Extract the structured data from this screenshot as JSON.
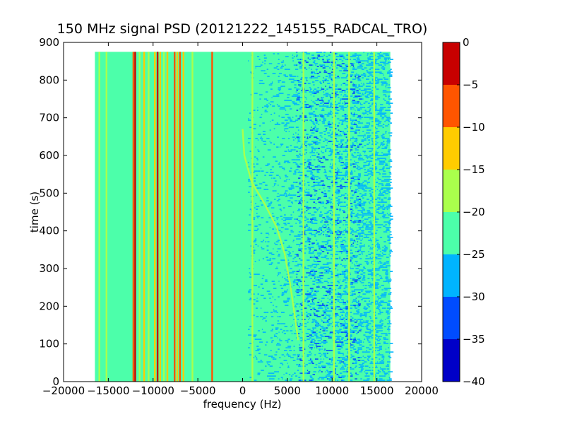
{
  "chart_data": {
    "type": "heatmap",
    "title": "150 MHz signal PSD (20121222_145155_RADCAL_TRO)",
    "xlabel": "frequency (Hz)",
    "ylabel": "time (s)",
    "xlim": [
      -20000,
      20000
    ],
    "ylim": [
      0,
      900
    ],
    "x_ticks": [
      "−20000",
      "−15000",
      "−10000",
      "−5000",
      "0",
      "5000",
      "10000",
      "15000",
      "20000"
    ],
    "y_ticks": [
      "0",
      "100",
      "200",
      "300",
      "400",
      "500",
      "600",
      "700",
      "800",
      "900"
    ],
    "data_extent": {
      "x": [
        -16500,
        16500
      ],
      "y": [
        0,
        875
      ]
    },
    "background_level": -22.5,
    "colorbar": {
      "range": [
        -40,
        0
      ],
      "ticks": [
        "0",
        "−5",
        "−10",
        "−15",
        "−20",
        "−25",
        "−30",
        "−35",
        "−40"
      ],
      "levels": [
        {
          "from": -40,
          "to": -35,
          "color": "#0000c8"
        },
        {
          "from": -35,
          "to": -30,
          "color": "#004cff"
        },
        {
          "from": -30,
          "to": -25,
          "color": "#00b4ff"
        },
        {
          "from": -25,
          "to": -20,
          "color": "#4cffaa"
        },
        {
          "from": -20,
          "to": -15,
          "color": "#aaff4c"
        },
        {
          "from": -15,
          "to": -10,
          "color": "#ffcc00"
        },
        {
          "from": -10,
          "to": -5,
          "color": "#ff5500"
        },
        {
          "from": -5,
          "to": 0,
          "color": "#c80000"
        }
      ]
    },
    "signal_lines": [
      {
        "x": -16000,
        "level": -17.5
      },
      {
        "x": -15200,
        "level": -17.5
      },
      {
        "x": -12200,
        "level": -7.5
      },
      {
        "x": -12000,
        "level": -2.5
      },
      {
        "x": -11500,
        "level": -17.5
      },
      {
        "x": -11000,
        "level": -12.5
      },
      {
        "x": -10500,
        "level": -17.5
      },
      {
        "x": -9800,
        "level": -12.5
      },
      {
        "x": -9500,
        "level": -2.5
      },
      {
        "x": -9200,
        "level": -12.5
      },
      {
        "x": -8800,
        "level": -17.5
      },
      {
        "x": -8400,
        "level": -12.5
      },
      {
        "x": -7600,
        "level": -7.5
      },
      {
        "x": -7300,
        "level": -12.5
      },
      {
        "x": -7000,
        "level": -7.5
      },
      {
        "x": -6600,
        "level": -12.5
      },
      {
        "x": -5600,
        "level": -17.5
      },
      {
        "x": -3400,
        "level": -7.5
      },
      {
        "x": 1100,
        "level": -17.5
      },
      {
        "x": 6800,
        "level": -17.5
      },
      {
        "x": 10200,
        "level": -17.5
      },
      {
        "x": 11900,
        "level": -17.5
      },
      {
        "x": 14700,
        "level": -17.5
      }
    ],
    "drift_track": {
      "level": -17.5,
      "points": [
        [
          0,
          670
        ],
        [
          200,
          600
        ],
        [
          1000,
          530
        ],
        [
          2500,
          470
        ],
        [
          3800,
          410
        ],
        [
          4700,
          340
        ],
        [
          5300,
          260
        ],
        [
          5800,
          180
        ],
        [
          6200,
          110
        ]
      ]
    },
    "noise_regions": [
      {
        "x": [
          600,
          16500
        ],
        "level": -27.5,
        "density": 0.35
      },
      {
        "x": [
          6000,
          13000
        ],
        "level": -32.5,
        "density": 0.08
      }
    ]
  }
}
